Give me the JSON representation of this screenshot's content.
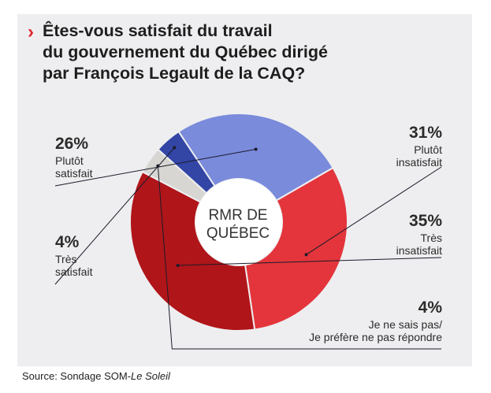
{
  "title": "Êtes-vous satisfait du travail\ndu gouvernement du Québec dirigé\npar François Legault de la CAQ?",
  "title_marker": "›",
  "center_label": "RMR DE\nQUÉBEC",
  "source_prefix": "Source: Sondage SOM-",
  "source_italic": "Le Soleil",
  "chart_data": {
    "type": "pie",
    "variant": "donut",
    "title": "Êtes-vous satisfait du travail du gouvernement du Québec dirigé par François Legault de la CAQ?",
    "center_text": "RMR DE QUÉBEC",
    "slices": [
      {
        "key": "plutot_insatisfait",
        "label": "Plutôt\ninsatisfait",
        "value": 31,
        "pct_text": "31%",
        "color": "#e3353b"
      },
      {
        "key": "tres_insatisfait",
        "label": "Très\ninsatisfait",
        "value": 35,
        "pct_text": "35%",
        "color": "#b01519"
      },
      {
        "key": "ne_sais_pas",
        "label": "Je ne sais pas/\nJe préfère ne pas répondre",
        "value": 4,
        "pct_text": "4%",
        "color": "#d7d6d2"
      },
      {
        "key": "tres_satisfait",
        "label": "Très\nsatisfait",
        "value": 4,
        "pct_text": "4%",
        "color": "#3346a6"
      },
      {
        "key": "plutot_satisfait",
        "label": "Plutôt\nsatisfait",
        "value": 26,
        "pct_text": "26%",
        "color": "#7a8bdc"
      }
    ],
    "source": "Sondage SOM-Le Soleil"
  }
}
